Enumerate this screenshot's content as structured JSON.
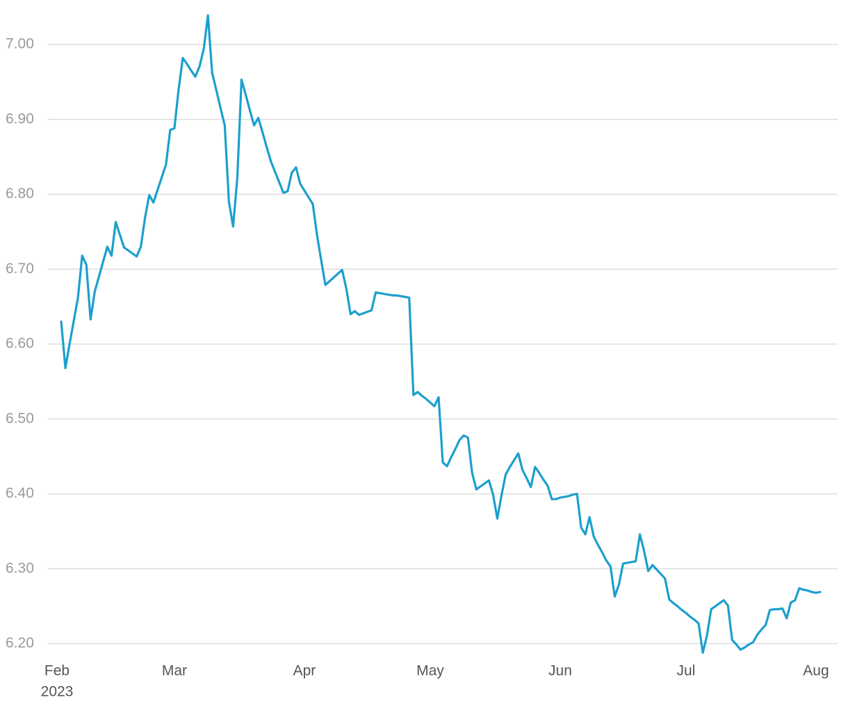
{
  "chart_data": {
    "type": "line",
    "categories": [
      "Feb",
      null,
      null,
      null,
      null,
      null,
      null,
      null,
      null,
      null,
      null,
      null,
      null,
      null,
      null,
      null,
      null,
      null,
      null,
      null,
      null,
      null,
      null,
      null,
      null,
      null,
      null,
      null,
      "Mar",
      null,
      null,
      null,
      null,
      null,
      null,
      null,
      null,
      null,
      null,
      null,
      null,
      null,
      null,
      null,
      null,
      null,
      null,
      null,
      null,
      null,
      null,
      null,
      null,
      null,
      null,
      null,
      null,
      null,
      null,
      "Apr",
      null,
      null,
      null,
      null,
      null,
      null,
      null,
      null,
      null,
      null,
      null,
      null,
      null,
      null,
      null,
      null,
      null,
      null,
      null,
      null,
      null,
      null,
      null,
      null,
      null,
      null,
      null,
      null,
      null,
      "May",
      null,
      null,
      null,
      null,
      null,
      null,
      null,
      null,
      null,
      null,
      null,
      null,
      null,
      null,
      null,
      null,
      null,
      null,
      null,
      null,
      null,
      null,
      null,
      null,
      null,
      null,
      null,
      null,
      null,
      null,
      "Jun",
      null,
      null,
      null,
      null,
      null,
      null,
      null,
      null,
      null,
      null,
      null,
      null,
      null,
      null,
      null,
      null,
      null,
      null,
      null,
      null,
      null,
      null,
      null,
      null,
      null,
      null,
      null,
      null,
      null,
      "Jul",
      null,
      null,
      null,
      null,
      null,
      null,
      null,
      null,
      null,
      null,
      null,
      null,
      null,
      null,
      null,
      null,
      null,
      null,
      null,
      null,
      null,
      null,
      null,
      null,
      null,
      null,
      null,
      null,
      null,
      null,
      "Aug",
      null
    ],
    "year_label": "2023",
    "values": [
      null,
      6.63,
      6.568,
      6.6,
      6.631,
      6.662,
      6.718,
      6.706,
      6.633,
      6.67,
      6.69,
      6.71,
      6.73,
      6.718,
      6.763,
      6.746,
      6.729,
      6.725,
      6.721,
      6.717,
      6.73,
      6.769,
      6.799,
      6.789,
      6.806,
      6.823,
      6.84,
      6.886,
      6.888,
      6.94,
      6.982,
      6.974,
      6.965,
      6.957,
      6.971,
      6.994,
      7.039,
      6.962,
      6.939,
      6.915,
      6.892,
      6.79,
      6.757,
      6.822,
      6.953,
      6.933,
      6.912,
      6.892,
      6.902,
      6.883,
      6.863,
      6.844,
      6.83,
      6.816,
      6.802,
      6.804,
      6.829,
      6.836,
      6.814,
      6.805,
      6.796,
      6.787,
      6.746,
      6.712,
      6.679,
      6.684,
      6.689,
      6.694,
      6.699,
      6.674,
      6.64,
      6.644,
      6.639,
      6.641,
      6.643,
      6.645,
      6.669,
      6.668,
      6.667,
      6.666,
      6.665,
      6.665,
      6.664,
      6.663,
      6.662,
      6.532,
      6.536,
      6.531,
      6.527,
      6.522,
      6.517,
      6.529,
      6.442,
      6.437,
      6.449,
      6.46,
      6.472,
      6.478,
      6.475,
      6.428,
      6.406,
      6.41,
      6.414,
      6.418,
      6.399,
      6.367,
      6.398,
      6.426,
      6.436,
      6.445,
      6.454,
      6.432,
      6.421,
      6.409,
      6.436,
      6.428,
      6.419,
      6.411,
      6.393,
      6.393,
      6.395,
      6.396,
      6.397,
      6.399,
      6.4,
      6.355,
      6.346,
      6.369,
      6.343,
      6.332,
      6.322,
      6.311,
      6.303,
      6.263,
      6.279,
      6.307,
      6.308,
      6.309,
      6.31,
      6.346,
      6.324,
      6.297,
      6.305,
      6.299,
      6.293,
      6.287,
      6.259,
      6.254,
      6.25,
      6.245,
      6.241,
      6.236,
      6.232,
      6.227,
      6.188,
      6.211,
      6.246,
      6.25,
      6.254,
      6.258,
      6.251,
      6.205,
      6.199,
      6.192,
      6.195,
      6.199,
      6.202,
      6.212,
      6.219,
      6.225,
      6.245,
      6.246,
      6.246,
      6.247,
      6.234,
      6.255,
      6.258,
      6.274,
      6.272,
      6.271,
      6.269,
      6.268,
      6.269
    ],
    "color": "#1c9fcd",
    "ylim": [
      6.18,
      7.045
    ],
    "yticks": [
      {
        "value": 6.2,
        "label": "6.20"
      },
      {
        "value": 6.3,
        "label": "6.30"
      },
      {
        "value": 6.4,
        "label": "6.40"
      },
      {
        "value": 6.5,
        "label": "6.50"
      },
      {
        "value": 6.6,
        "label": "6.60"
      },
      {
        "value": 6.7,
        "label": "6.70"
      },
      {
        "value": 6.8,
        "label": "6.80"
      },
      {
        "value": 6.9,
        "label": "6.90"
      },
      {
        "value": 7.0,
        "label": "7.00"
      }
    ],
    "grid": true
  }
}
